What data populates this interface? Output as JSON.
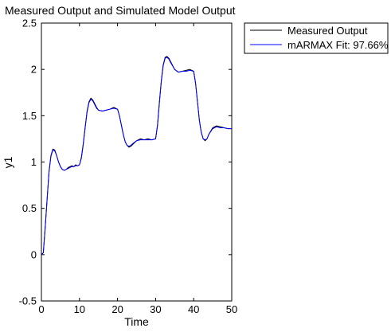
{
  "chart_data": {
    "type": "line",
    "title": "Measured Output and Simulated Model Output",
    "xlabel": "Time",
    "ylabel": "y1",
    "xlim": [
      0,
      50
    ],
    "ylim": [
      -0.5,
      2.5
    ],
    "xticks": [
      0,
      10,
      20,
      30,
      40,
      50
    ],
    "yticks": [
      -0.5,
      0,
      0.5,
      1,
      1.5,
      2,
      2.5
    ],
    "xtick_labels": [
      "0",
      "10",
      "20",
      "30",
      "40",
      "50"
    ],
    "ytick_labels": [
      "-0.5",
      "0",
      "0.5",
      "1",
      "1.5",
      "2",
      "2.5"
    ],
    "grid": false,
    "legend_position": "outside-top-right",
    "series": [
      {
        "name": "Measured Output",
        "color": "#000000",
        "x": [
          0,
          0.5,
          1,
          1.5,
          2,
          2.5,
          3,
          3.5,
          4,
          4.5,
          5,
          5.5,
          6,
          6.5,
          7,
          7.5,
          8,
          8.5,
          9,
          9.5,
          10,
          10.5,
          11,
          11.5,
          12,
          12.5,
          13,
          13.5,
          14,
          14.5,
          15,
          16,
          17,
          18,
          19,
          20,
          20.5,
          21,
          21.5,
          22,
          22.5,
          23,
          23.5,
          24,
          25,
          26,
          27,
          28,
          29,
          30,
          30.5,
          31,
          31.5,
          32,
          32.5,
          33,
          33.5,
          34,
          35,
          36,
          37,
          38,
          39,
          40,
          40.5,
          41,
          41.5,
          42,
          42.5,
          43,
          43.5,
          44,
          45,
          46,
          47,
          48,
          49,
          50
        ],
        "y": [
          0,
          0.02,
          0.3,
          0.6,
          0.9,
          1.07,
          1.14,
          1.13,
          1.07,
          1.0,
          0.95,
          0.92,
          0.91,
          0.92,
          0.94,
          0.95,
          0.96,
          0.95,
          0.97,
          0.96,
          0.97,
          1.05,
          1.2,
          1.38,
          1.55,
          1.65,
          1.69,
          1.67,
          1.63,
          1.59,
          1.56,
          1.55,
          1.56,
          1.57,
          1.59,
          1.57,
          1.5,
          1.4,
          1.3,
          1.22,
          1.18,
          1.16,
          1.17,
          1.19,
          1.23,
          1.25,
          1.24,
          1.25,
          1.24,
          1.25,
          1.4,
          1.65,
          1.88,
          2.05,
          2.13,
          2.14,
          2.12,
          2.08,
          2.0,
          1.97,
          1.98,
          1.99,
          2.0,
          1.98,
          1.85,
          1.65,
          1.45,
          1.32,
          1.25,
          1.23,
          1.25,
          1.3,
          1.37,
          1.39,
          1.38,
          1.37,
          1.36,
          1.36
        ]
      },
      {
        "name": "mARMAX Fit: 97.66%",
        "color": "#0000ff",
        "x": [
          0,
          0.5,
          1,
          1.5,
          2,
          2.5,
          3,
          3.5,
          4,
          4.5,
          5,
          5.5,
          6,
          6.5,
          7,
          7.5,
          8,
          8.5,
          9,
          9.5,
          10,
          10.5,
          11,
          11.5,
          12,
          12.5,
          13,
          13.5,
          14,
          14.5,
          15,
          16,
          17,
          18,
          19,
          20,
          20.5,
          21,
          21.5,
          22,
          22.5,
          23,
          23.5,
          24,
          25,
          26,
          27,
          28,
          29,
          30,
          30.5,
          31,
          31.5,
          32,
          32.5,
          33,
          33.5,
          34,
          35,
          36,
          37,
          38,
          39,
          40,
          40.5,
          41,
          41.5,
          42,
          42.5,
          43,
          43.5,
          44,
          45,
          46,
          47,
          48,
          49,
          50
        ],
        "y": [
          0,
          0.02,
          0.29,
          0.6,
          0.89,
          1.06,
          1.13,
          1.12,
          1.07,
          1.0,
          0.95,
          0.92,
          0.91,
          0.92,
          0.93,
          0.94,
          0.95,
          0.95,
          0.96,
          0.96,
          0.97,
          1.04,
          1.19,
          1.37,
          1.54,
          1.64,
          1.68,
          1.66,
          1.62,
          1.58,
          1.56,
          1.55,
          1.56,
          1.57,
          1.58,
          1.57,
          1.5,
          1.4,
          1.3,
          1.22,
          1.18,
          1.17,
          1.18,
          1.2,
          1.23,
          1.24,
          1.24,
          1.24,
          1.24,
          1.25,
          1.39,
          1.64,
          1.87,
          2.04,
          2.12,
          2.13,
          2.11,
          2.07,
          2.0,
          1.97,
          1.98,
          1.98,
          1.99,
          1.98,
          1.85,
          1.65,
          1.45,
          1.32,
          1.25,
          1.24,
          1.25,
          1.3,
          1.36,
          1.38,
          1.37,
          1.37,
          1.36,
          1.36
        ]
      }
    ]
  }
}
